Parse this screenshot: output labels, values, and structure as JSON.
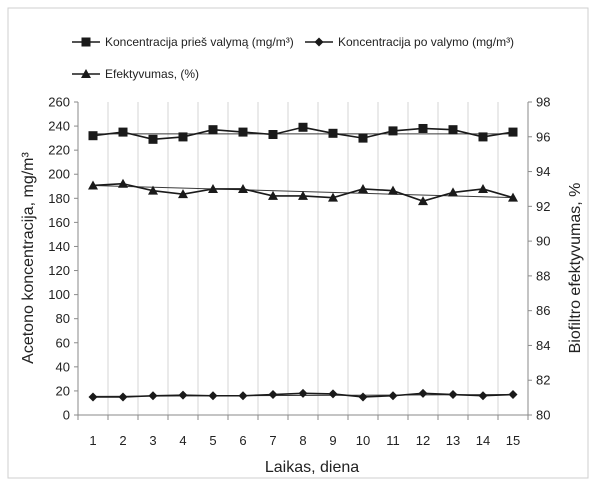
{
  "chart_data": {
    "type": "line",
    "x": [
      1,
      2,
      3,
      4,
      5,
      6,
      7,
      8,
      9,
      10,
      11,
      12,
      13,
      14,
      15
    ],
    "xlabel": "Laikas, diena",
    "ylabel_left": "Acetono koncentracija, mg/m³",
    "ylabel_right": "Biofiltro efektyvumas, %",
    "ylim_left": [
      0,
      260
    ],
    "ylim_right": [
      80,
      98
    ],
    "yticks_left": [
      0,
      20,
      40,
      60,
      80,
      100,
      120,
      140,
      160,
      180,
      200,
      220,
      240,
      260
    ],
    "yticks_right": [
      80,
      82,
      84,
      86,
      88,
      90,
      92,
      94,
      96,
      98
    ],
    "grid": "vertical",
    "legend_position": "top",
    "series": [
      {
        "name": "Koncentracija prieš valymą (mg/m³)",
        "axis": "left",
        "marker": "square",
        "color": "#1a1a1a",
        "values": [
          232,
          235,
          229,
          231,
          237,
          235,
          233,
          239,
          234,
          230,
          236,
          238,
          237,
          231,
          235
        ],
        "trend": [
          233.5,
          233.5
        ]
      },
      {
        "name": "Koncentracija po valymo (mg/m³)",
        "axis": "left",
        "marker": "diamond",
        "color": "#1a1a1a",
        "values": [
          15,
          15,
          16,
          16.5,
          16,
          16,
          17,
          18,
          17.5,
          15,
          16,
          18,
          17,
          16,
          17
        ],
        "trend": [
          15.5,
          17
        ]
      },
      {
        "name": "Efektyvumas, (%)",
        "axis": "right",
        "marker": "triangle",
        "color": "#1a1a1a",
        "values": [
          93.2,
          93.3,
          92.9,
          92.7,
          93.0,
          93.0,
          92.6,
          92.6,
          92.5,
          93.0,
          92.9,
          92.3,
          92.8,
          93.0,
          92.5
        ],
        "trend": [
          93.2,
          92.5
        ]
      }
    ]
  }
}
